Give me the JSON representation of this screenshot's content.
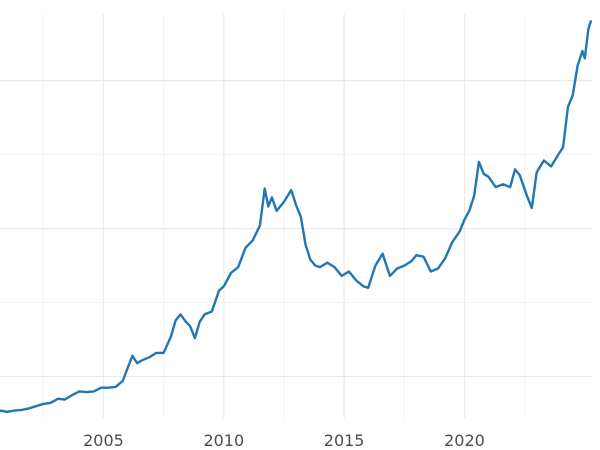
{
  "chart_data": {
    "type": "line",
    "title": "",
    "xlabel": "",
    "ylabel": "",
    "grid": true,
    "legend": "none",
    "xlim": [
      2000.7,
      2025.3
    ],
    "ylim": [
      220,
      2950
    ],
    "x_ticks": [
      2005,
      2010,
      2015,
      2020
    ],
    "x_tick_labels": [
      "2005",
      "2010",
      "2015",
      "2020"
    ],
    "y_gridlines": [
      500,
      1000,
      1500,
      2000,
      2500
    ],
    "color": "#1f77b4",
    "series": [
      {
        "points": [
          [
            2000.7,
            270
          ],
          [
            2001.0,
            262
          ],
          [
            2001.3,
            270
          ],
          [
            2001.6,
            275
          ],
          [
            2001.9,
            285
          ],
          [
            2002.2,
            300
          ],
          [
            2002.5,
            315
          ],
          [
            2002.8,
            322
          ],
          [
            2003.1,
            350
          ],
          [
            2003.4,
            345
          ],
          [
            2003.7,
            375
          ],
          [
            2004.0,
            400
          ],
          [
            2004.3,
            395
          ],
          [
            2004.6,
            400
          ],
          [
            2004.9,
            425
          ],
          [
            2005.2,
            425
          ],
          [
            2005.5,
            430
          ],
          [
            2005.8,
            470
          ],
          [
            2006.0,
            555
          ],
          [
            2006.2,
            640
          ],
          [
            2006.4,
            590
          ],
          [
            2006.6,
            610
          ],
          [
            2006.9,
            630
          ],
          [
            2007.2,
            660
          ],
          [
            2007.5,
            660
          ],
          [
            2007.8,
            770
          ],
          [
            2008.0,
            880
          ],
          [
            2008.2,
            920
          ],
          [
            2008.4,
            875
          ],
          [
            2008.6,
            840
          ],
          [
            2008.8,
            760
          ],
          [
            2009.0,
            870
          ],
          [
            2009.2,
            920
          ],
          [
            2009.5,
            940
          ],
          [
            2009.8,
            1080
          ],
          [
            2010.0,
            1110
          ],
          [
            2010.3,
            1200
          ],
          [
            2010.6,
            1240
          ],
          [
            2010.9,
            1370
          ],
          [
            2011.2,
            1420
          ],
          [
            2011.5,
            1520
          ],
          [
            2011.7,
            1770
          ],
          [
            2011.85,
            1650
          ],
          [
            2012.0,
            1710
          ],
          [
            2012.2,
            1620
          ],
          [
            2012.5,
            1680
          ],
          [
            2012.8,
            1760
          ],
          [
            2013.0,
            1660
          ],
          [
            2013.2,
            1580
          ],
          [
            2013.4,
            1390
          ],
          [
            2013.6,
            1290
          ],
          [
            2013.8,
            1250
          ],
          [
            2014.0,
            1240
          ],
          [
            2014.3,
            1270
          ],
          [
            2014.6,
            1240
          ],
          [
            2014.9,
            1180
          ],
          [
            2015.2,
            1210
          ],
          [
            2015.5,
            1150
          ],
          [
            2015.8,
            1110
          ],
          [
            2016.0,
            1100
          ],
          [
            2016.3,
            1250
          ],
          [
            2016.6,
            1330
          ],
          [
            2016.9,
            1180
          ],
          [
            2017.2,
            1230
          ],
          [
            2017.5,
            1250
          ],
          [
            2017.8,
            1280
          ],
          [
            2018.0,
            1320
          ],
          [
            2018.3,
            1310
          ],
          [
            2018.6,
            1210
          ],
          [
            2018.9,
            1230
          ],
          [
            2019.2,
            1300
          ],
          [
            2019.5,
            1410
          ],
          [
            2019.8,
            1480
          ],
          [
            2020.0,
            1560
          ],
          [
            2020.2,
            1620
          ],
          [
            2020.4,
            1720
          ],
          [
            2020.6,
            1950
          ],
          [
            2020.8,
            1870
          ],
          [
            2021.0,
            1850
          ],
          [
            2021.3,
            1780
          ],
          [
            2021.6,
            1800
          ],
          [
            2021.9,
            1780
          ],
          [
            2022.1,
            1900
          ],
          [
            2022.3,
            1860
          ],
          [
            2022.6,
            1720
          ],
          [
            2022.8,
            1640
          ],
          [
            2023.0,
            1880
          ],
          [
            2023.3,
            1960
          ],
          [
            2023.6,
            1920
          ],
          [
            2023.9,
            2000
          ],
          [
            2024.1,
            2050
          ],
          [
            2024.3,
            2320
          ],
          [
            2024.5,
            2400
          ],
          [
            2024.7,
            2600
          ],
          [
            2024.9,
            2700
          ],
          [
            2025.0,
            2650
          ],
          [
            2025.15,
            2850
          ],
          [
            2025.25,
            2900
          ]
        ]
      }
    ]
  }
}
